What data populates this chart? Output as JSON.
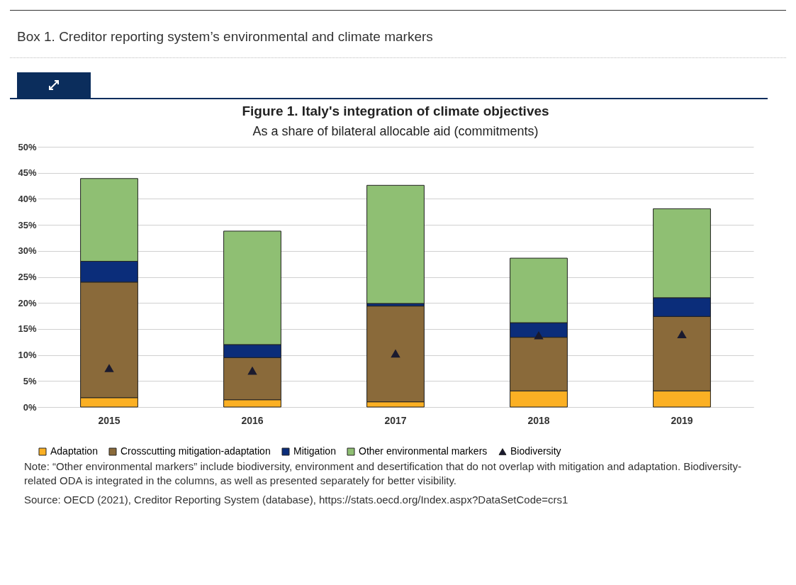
{
  "chart_data": {
    "type": "bar",
    "title": "Figure 1. Italy's integration of climate objectives",
    "subtitle": "As a share of bilateral allocable aid (commitments)",
    "categories": [
      "2015",
      "2016",
      "2017",
      "2018",
      "2019"
    ],
    "stacked": true,
    "series": [
      {
        "name": "Adaptation",
        "color": "#fbb024",
        "values": [
          1.8,
          1.4,
          1.0,
          3.1,
          3.1
        ]
      },
      {
        "name": "Crosscutting mitigation-adaptation",
        "color": "#8a6a3a",
        "values": [
          22.2,
          8.1,
          18.4,
          10.3,
          14.3
        ]
      },
      {
        "name": "Mitigation",
        "color": "#0b2d7a",
        "values": [
          4.0,
          2.5,
          0.5,
          2.8,
          3.6
        ]
      },
      {
        "name": "Other environmental markers",
        "color": "#8fbf73",
        "values": [
          15.9,
          21.8,
          22.7,
          12.4,
          17.1
        ]
      },
      {
        "name": "Biodiversity",
        "type": "scatter",
        "color": "#1a1a2e",
        "values": [
          7.5,
          7.0,
          10.3,
          13.8,
          14.0
        ]
      }
    ],
    "marker": "triangle",
    "ylim": [
      0,
      50
    ],
    "yticks": [
      {
        "value": 0,
        "label": "0%"
      },
      {
        "value": 5,
        "label": "5%"
      },
      {
        "value": 10,
        "label": "10%"
      },
      {
        "value": 15,
        "label": "15%"
      },
      {
        "value": 20,
        "label": "20%"
      },
      {
        "value": 25,
        "label": "25%"
      },
      {
        "value": 30,
        "label": "30%"
      },
      {
        "value": 35,
        "label": "35%"
      },
      {
        "value": 40,
        "label": "40%"
      },
      {
        "value": 45,
        "label": "45%"
      },
      {
        "value": 50,
        "label": "50%"
      }
    ],
    "grid": "y",
    "legend": "bottom",
    "annotations": [
      "Box 1. Creditor reporting system’s environmental and climate markers",
      "Note: “Other environmental markers” include biodiversity, environment and desertification that do not overlap with mitigation and adaptation. Biodiversity-related ODA is integrated in the columns, as well as presented separately for better visibility.",
      "Source: OECD (2021), Creditor Reporting System (database), https://stats.oecd.org/Index.aspx?DataSetCode=crs1"
    ]
  }
}
